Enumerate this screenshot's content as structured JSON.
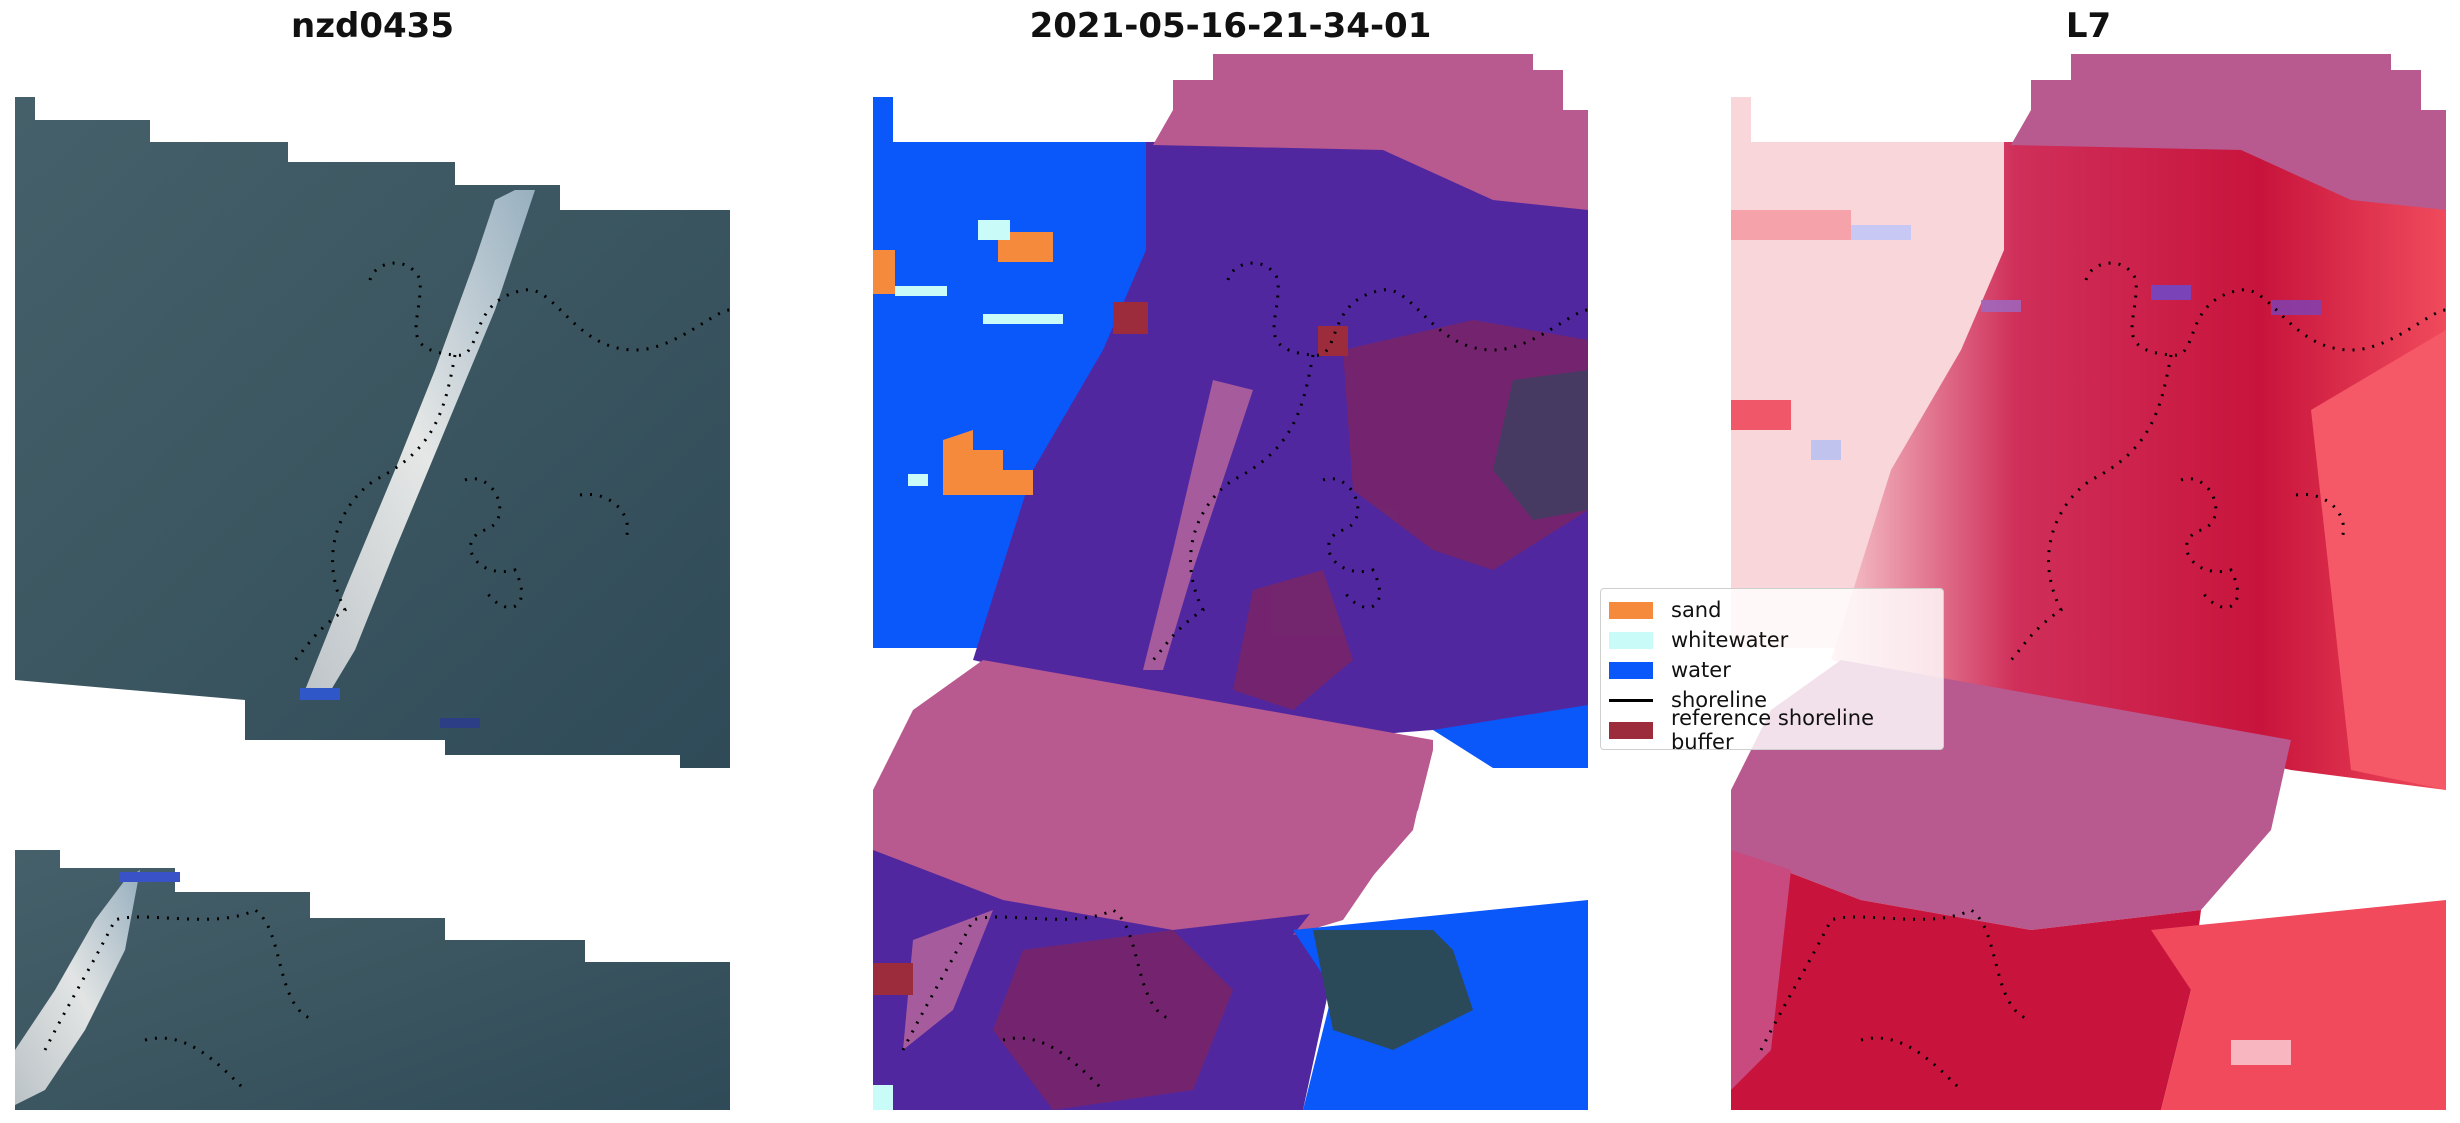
{
  "panels": [
    {
      "title": "nzd0435"
    },
    {
      "title": "2021-05-16-21-34-01"
    },
    {
      "title": "L7"
    }
  ],
  "legend": {
    "items": [
      {
        "label": "sand",
        "color": "#f58a3c",
        "kind": "patch"
      },
      {
        "label": "whitewater",
        "color": "#c9fbf8",
        "kind": "patch"
      },
      {
        "label": "water",
        "color": "#0a57fa",
        "kind": "patch"
      },
      {
        "label": "shoreline",
        "color": "#000000",
        "kind": "line"
      },
      {
        "label": "reference shoreline buffer",
        "color": "#9c2c3c",
        "kind": "patch"
      }
    ]
  },
  "colors": {
    "satellite_base": "#3d5866",
    "water": "#0a57fa",
    "land_class": "#5127a0",
    "mask_overlay": "#b8598f",
    "sand": "#f58a3c",
    "whitewater": "#c9fbf8",
    "buffer": "#9c2c3c",
    "index_high": "#c8143c",
    "index_low": "#fbe1e4"
  }
}
